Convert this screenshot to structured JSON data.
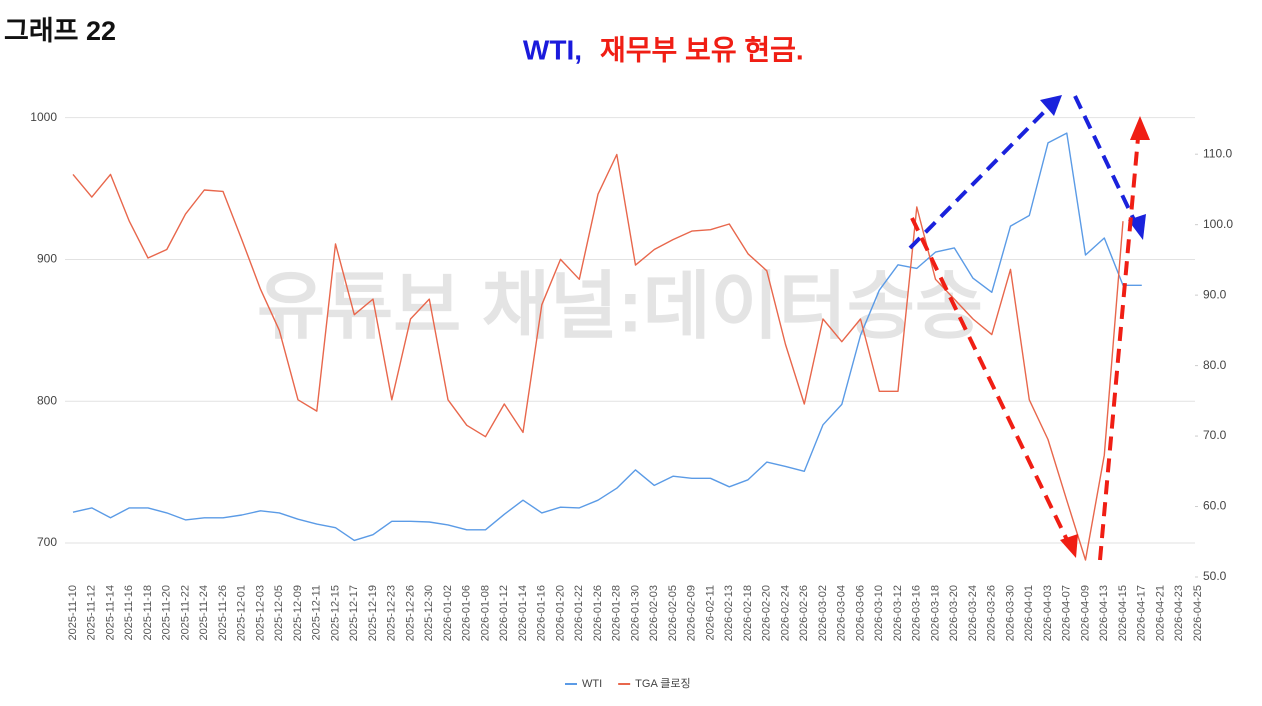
{
  "heading": "그래프 22",
  "watermark": "유튜브 채널:데이터송송",
  "chart_data": {
    "type": "line",
    "title_parts": [
      "WTI,",
      "재무부 보유 현금."
    ],
    "categories": [
      "2025-11-10",
      "2025-11-12",
      "2025-11-14",
      "2025-11-16",
      "2025-11-18",
      "2025-11-20",
      "2025-11-22",
      "2025-11-24",
      "2025-11-26",
      "2025-12-01",
      "2025-12-03",
      "2025-12-05",
      "2025-12-09",
      "2025-12-11",
      "2025-12-15",
      "2025-12-17",
      "2025-12-19",
      "2025-12-23",
      "2025-12-26",
      "2025-12-30",
      "2026-01-02",
      "2026-01-06",
      "2026-01-08",
      "2026-01-12",
      "2026-01-14",
      "2026-01-16",
      "2026-01-20",
      "2026-01-22",
      "2026-01-26",
      "2026-01-28",
      "2026-01-30",
      "2026-02-03",
      "2026-02-05",
      "2026-02-09",
      "2026-02-11",
      "2026-02-13",
      "2026-02-18",
      "2026-02-20",
      "2026-02-24",
      "2026-02-26",
      "2026-03-02",
      "2026-03-04",
      "2026-03-06",
      "2026-03-10",
      "2026-03-12",
      "2026-03-16",
      "2026-03-18",
      "2026-03-20",
      "2026-03-24",
      "2026-03-26",
      "2026-03-30",
      "2026-04-01",
      "2026-04-03",
      "2026-04-07",
      "2026-04-09",
      "2026-04-13",
      "2026-04-15",
      "2026-04-17",
      "2026-04-21",
      "2026-04-23",
      "2026-04-25"
    ],
    "series": [
      {
        "name": "WTI",
        "color": "#5b9be6",
        "axis": "y2",
        "values": [
          59.2,
          59.8,
          58.4,
          59.8,
          59.8,
          59.1,
          58.1,
          58.4,
          58.4,
          58.8,
          59.4,
          59.1,
          58.2,
          57.5,
          57.0,
          55.2,
          56.0,
          57.9,
          57.9,
          57.8,
          57.4,
          56.7,
          56.7,
          58.9,
          60.9,
          59.1,
          59.9,
          59.8,
          60.9,
          62.6,
          65.2,
          63.0,
          64.3,
          64.0,
          64.0,
          62.8,
          63.8,
          66.3,
          65.7,
          65.0,
          71.6,
          74.5,
          84.3,
          90.7,
          94.3,
          93.8,
          96.1,
          96.7,
          92.4,
          90.4,
          99.8,
          101.3,
          111.6,
          113.0,
          95.7,
          98.1,
          91.4,
          91.4,
          null,
          null,
          null
        ]
      },
      {
        "name": "TGA 클로징",
        "color": "#e8674c",
        "values": [
          960,
          944,
          960,
          927,
          901,
          907,
          932,
          949,
          948,
          914,
          879,
          850,
          801,
          793,
          911,
          861,
          872,
          801,
          858,
          872,
          801,
          783,
          775,
          798,
          778,
          868,
          900,
          886,
          946,
          974,
          896,
          907,
          914,
          920,
          921,
          925,
          904,
          892,
          840,
          798,
          858,
          842,
          858,
          807,
          807,
          937,
          886,
          872,
          858,
          847,
          893,
          801,
          773,
          730,
          688,
          762,
          927,
          null,
          null,
          null,
          null
        ]
      }
    ],
    "ylim": [
      676,
      1016
    ],
    "yticks": [
      700,
      800,
      900,
      1000
    ],
    "y2lim": [
      50,
      118.4
    ],
    "y2ticks": [
      {
        "value": 50,
        "label": "50.0"
      },
      {
        "value": 60,
        "label": "60.0"
      },
      {
        "value": 70,
        "label": "70.0"
      },
      {
        "value": 80,
        "label": "80.0"
      },
      {
        "value": 90,
        "label": "90.0"
      },
      {
        "value": 100,
        "label": "100.0"
      },
      {
        "value": 110,
        "label": "110.0"
      }
    ],
    "grid": true
  }
}
